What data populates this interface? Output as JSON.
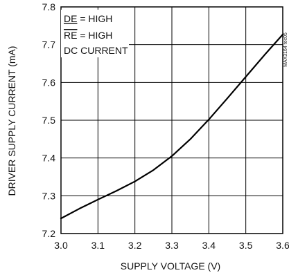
{
  "chart_data": {
    "type": "line",
    "xlabel": "SUPPLY VOLTAGE (V)",
    "ylabel": "DRIVER SUPPLY CURRENT (mA)",
    "xlim": [
      3.0,
      3.6
    ],
    "ylim": [
      7.2,
      7.8
    ],
    "x_ticks": [
      "3.0",
      "3.1",
      "3.2",
      "3.3",
      "3.4",
      "3.5",
      "3.6"
    ],
    "y_ticks": [
      "7.2",
      "7.3",
      "7.4",
      "7.5",
      "7.6",
      "7.7",
      "7.8"
    ],
    "grid": true,
    "series": [
      {
        "x": [
          3.0,
          3.05,
          3.1,
          3.15,
          3.2,
          3.25,
          3.3,
          3.35,
          3.4,
          3.45,
          3.5,
          3.55,
          3.6
        ],
        "y": [
          7.24,
          7.266,
          7.29,
          7.313,
          7.338,
          7.368,
          7.405,
          7.45,
          7.502,
          7.558,
          7.615,
          7.672,
          7.727
        ],
        "color": "#000000"
      }
    ],
    "annotations": {
      "line1_prefix": "DE",
      "line1_suffix": " = HIGH",
      "line2_prefix": "RE",
      "line2_suffix": " = HIGH",
      "line3": "DC CURRENT"
    },
    "side_mark": "MAX3164 toc05"
  }
}
